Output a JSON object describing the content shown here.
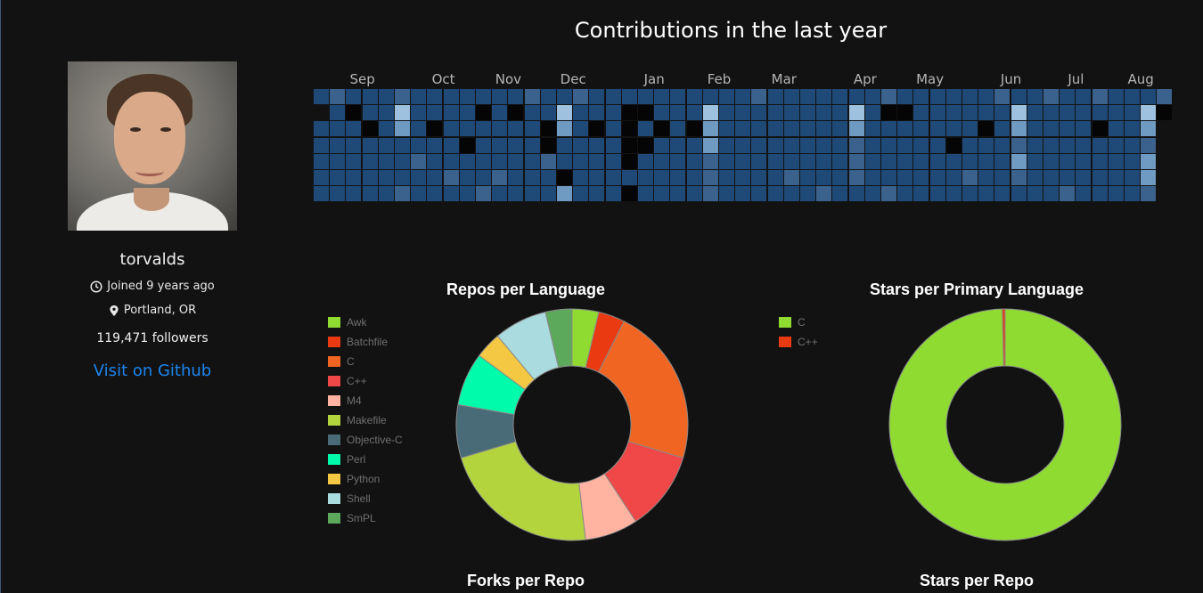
{
  "profile": {
    "username": "torvalds",
    "joined": "Joined 9 years ago",
    "location": "Portland, OR",
    "followers": "119,471 followers",
    "github_link": "Visit on Github",
    "icons": [
      "clock-icon",
      "location-pin-icon"
    ]
  },
  "contributions": {
    "title": "Contributions in the last year",
    "months": [
      {
        "label": "Sep",
        "week": 3
      },
      {
        "label": "Oct",
        "week": 8
      },
      {
        "label": "Nov",
        "week": 12
      },
      {
        "label": "Dec",
        "week": 16
      },
      {
        "label": "Jan",
        "week": 21
      },
      {
        "label": "Feb",
        "week": 25
      },
      {
        "label": "Mar",
        "week": 29
      },
      {
        "label": "Apr",
        "week": 34
      },
      {
        "label": "May",
        "week": 38
      },
      {
        "label": "Jun",
        "week": 43
      },
      {
        "label": "Jul",
        "week": 47
      },
      {
        "label": "Aug",
        "week": 51
      }
    ],
    "level_colors": [
      "#050505",
      "#1f4a78",
      "#3b628c",
      "#6f9ac2",
      "#9dc1de"
    ],
    "levels": [
      [
        1,
        1,
        1,
        1,
        1,
        1,
        1,
        1,
        1,
        1,
        1,
        1,
        1,
        1,
        1,
        1,
        1,
        1,
        1,
        1,
        1,
        1,
        1,
        1,
        1,
        1,
        1,
        1,
        1,
        1,
        1,
        1,
        1,
        1,
        1,
        1,
        1,
        1,
        1,
        1,
        1,
        1,
        1,
        1,
        1,
        1,
        1,
        1,
        1,
        1,
        1,
        1,
        1
      ],
      [
        -1,
        1,
        1,
        1,
        1,
        1,
        1,
        1,
        1,
        1,
        1,
        1,
        1,
        1,
        1,
        1,
        1,
        1,
        1,
        1,
        1,
        1,
        1,
        1,
        1,
        1,
        1,
        1,
        1,
        1,
        1,
        1,
        1,
        1,
        1,
        1,
        1,
        1,
        1,
        1,
        1,
        1,
        1,
        1,
        1,
        1,
        1,
        1,
        1,
        1,
        1,
        1,
        1
      ],
      [
        1,
        1,
        1,
        1,
        1,
        1,
        1,
        1,
        1,
        1,
        1,
        1,
        1,
        1,
        1,
        1,
        1,
        1,
        1,
        1,
        1,
        1,
        1,
        1,
        1,
        1,
        1,
        1,
        1,
        1,
        1,
        1,
        1,
        1,
        1,
        1,
        1,
        1,
        1,
        1,
        1,
        1,
        1,
        1,
        1,
        1,
        1,
        1,
        1,
        1,
        1,
        1,
        -1
      ],
      [
        1,
        1,
        1,
        1,
        1,
        1,
        1,
        1,
        1,
        1,
        1,
        1,
        1,
        1,
        1,
        1,
        1,
        1,
        1,
        1,
        1,
        1,
        1,
        1,
        1,
        1,
        1,
        1,
        1,
        1,
        1,
        1,
        1,
        1,
        1,
        1,
        1,
        1,
        1,
        1,
        1,
        1,
        1,
        1,
        1,
        1,
        1,
        1,
        1,
        1,
        1,
        1,
        -1
      ],
      [
        1,
        1,
        1,
        1,
        1,
        1,
        1,
        1,
        1,
        1,
        1,
        1,
        1,
        1,
        1,
        1,
        1,
        1,
        1,
        1,
        1,
        1,
        1,
        1,
        1,
        1,
        1,
        1,
        1,
        1,
        1,
        1,
        1,
        1,
        1,
        1,
        1,
        1,
        1,
        1,
        1,
        1,
        1,
        1,
        1,
        1,
        1,
        1,
        1,
        1,
        1,
        1,
        -1
      ],
      [
        1,
        1,
        1,
        1,
        1,
        1,
        1,
        1,
        1,
        1,
        1,
        1,
        1,
        1,
        1,
        1,
        1,
        1,
        1,
        1,
        1,
        1,
        1,
        1,
        1,
        1,
        1,
        1,
        1,
        1,
        1,
        1,
        1,
        1,
        1,
        1,
        1,
        1,
        1,
        1,
        1,
        1,
        1,
        1,
        1,
        1,
        1,
        1,
        1,
        1,
        1,
        1,
        -1
      ],
      [
        1,
        1,
        1,
        1,
        1,
        1,
        1,
        1,
        1,
        1,
        1,
        1,
        1,
        1,
        1,
        1,
        1,
        1,
        1,
        1,
        1,
        1,
        1,
        1,
        1,
        1,
        1,
        1,
        1,
        1,
        1,
        1,
        1,
        1,
        1,
        1,
        1,
        1,
        1,
        1,
        1,
        1,
        1,
        1,
        1,
        1,
        1,
        1,
        1,
        1,
        1,
        1,
        -1
      ]
    ],
    "highlights": [
      [
        0,
        1,
        2
      ],
      [
        0,
        5,
        2
      ],
      [
        0,
        13,
        2
      ],
      [
        0,
        16,
        2
      ],
      [
        0,
        27,
        2
      ],
      [
        0,
        35,
        2
      ],
      [
        0,
        42,
        2
      ],
      [
        0,
        45,
        2
      ],
      [
        0,
        48,
        2
      ],
      [
        0,
        52,
        2
      ],
      [
        1,
        2,
        0
      ],
      [
        1,
        5,
        4
      ],
      [
        1,
        10,
        0
      ],
      [
        1,
        12,
        0
      ],
      [
        1,
        15,
        0
      ],
      [
        1,
        15,
        4
      ],
      [
        1,
        19,
        0
      ],
      [
        1,
        20,
        0
      ],
      [
        1,
        24,
        4
      ],
      [
        1,
        33,
        4
      ],
      [
        1,
        35,
        0
      ],
      [
        1,
        36,
        0
      ],
      [
        1,
        43,
        4
      ],
      [
        1,
        51,
        4
      ],
      [
        1,
        52,
        0
      ],
      [
        2,
        3,
        0
      ],
      [
        2,
        5,
        3
      ],
      [
        2,
        7,
        0
      ],
      [
        2,
        14,
        0
      ],
      [
        2,
        15,
        3
      ],
      [
        2,
        17,
        0
      ],
      [
        2,
        19,
        0
      ],
      [
        2,
        21,
        0
      ],
      [
        2,
        23,
        0
      ],
      [
        2,
        24,
        3
      ],
      [
        2,
        33,
        3
      ],
      [
        2,
        41,
        0
      ],
      [
        2,
        43,
        3
      ],
      [
        2,
        48,
        0
      ],
      [
        2,
        51,
        3
      ],
      [
        3,
        9,
        0
      ],
      [
        3,
        14,
        0
      ],
      [
        3,
        19,
        0
      ],
      [
        3,
        20,
        0
      ],
      [
        3,
        24,
        3
      ],
      [
        3,
        33,
        2
      ],
      [
        3,
        39,
        0
      ],
      [
        3,
        43,
        2
      ],
      [
        3,
        51,
        2
      ],
      [
        4,
        6,
        2
      ],
      [
        4,
        14,
        2
      ],
      [
        4,
        19,
        0
      ],
      [
        4,
        24,
        2
      ],
      [
        4,
        33,
        2
      ],
      [
        4,
        43,
        3
      ],
      [
        4,
        51,
        3
      ],
      [
        5,
        8,
        2
      ],
      [
        5,
        11,
        2
      ],
      [
        5,
        15,
        0
      ],
      [
        5,
        24,
        2
      ],
      [
        5,
        29,
        2
      ],
      [
        5,
        33,
        2
      ],
      [
        5,
        40,
        2
      ],
      [
        5,
        43,
        2
      ],
      [
        5,
        51,
        3
      ],
      [
        6,
        5,
        2
      ],
      [
        6,
        10,
        2
      ],
      [
        6,
        15,
        3
      ],
      [
        6,
        19,
        0
      ],
      [
        6,
        24,
        2
      ],
      [
        6,
        31,
        2
      ],
      [
        6,
        35,
        2
      ],
      [
        6,
        46,
        2
      ],
      [
        6,
        51,
        2
      ]
    ]
  },
  "charts": {
    "repos_per_language": {
      "title": "Repos per Language",
      "chart_data": {
        "type": "pie",
        "title": "Repos per Language",
        "categories": [
          "Awk",
          "Batchfile",
          "C",
          "C++",
          "M4",
          "Makefile",
          "Objective-C",
          "Perl",
          "Python",
          "Shell",
          "SmPL"
        ],
        "values": [
          1,
          1,
          6,
          3,
          2,
          6,
          2,
          2,
          1,
          2,
          1
        ],
        "colors": [
          "#8fdb32",
          "#ea3a12",
          "#f16523",
          "#f04848",
          "#ffb3a0",
          "#b4d43e",
          "#496a77",
          "#00fbaa",
          "#f4c842",
          "#a9dbdf",
          "#5ca95c"
        ]
      }
    },
    "stars_per_primary_language": {
      "title": "Stars per Primary Language",
      "chart_data": {
        "type": "pie",
        "title": "Stars per Primary Language",
        "categories": [
          "C",
          "C++"
        ],
        "values": [
          99.6,
          0.4
        ],
        "colors": [
          "#8fdb32",
          "#ea3a12"
        ]
      }
    },
    "forks_per_repo": {
      "title": "Forks per Repo"
    },
    "stars_per_repo": {
      "title": "Stars per Repo"
    }
  }
}
